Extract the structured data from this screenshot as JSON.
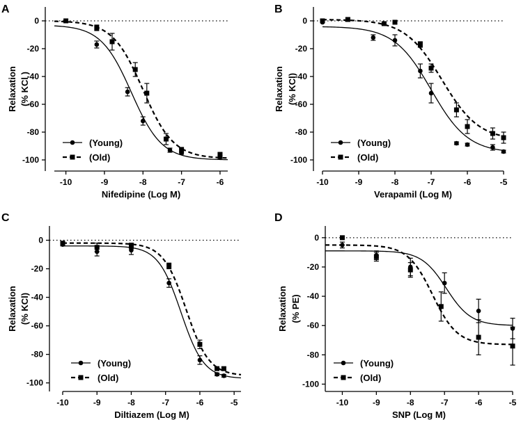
{
  "figure": {
    "panel_count": 4
  },
  "chart_data": [
    {
      "panel": "A",
      "type": "scatter",
      "xlabel": "Nifedipine (Log M)",
      "ylabel": "Relaxation",
      "ylabel_unit": "(% KCl )",
      "xlim": [
        -10.3,
        -5.8
      ],
      "ylim": [
        -108,
        10
      ],
      "xticks": [
        -10,
        -9,
        -8,
        -7,
        -6
      ],
      "yticks": [
        0,
        -20,
        -40,
        -60,
        -80,
        -100
      ],
      "zero_line": true,
      "legend_position": "bottom-left",
      "series": [
        {
          "name": "(Young)",
          "marker": "circle",
          "line": "solid",
          "points": [
            {
              "x": -10,
              "y": 0,
              "err": 0
            },
            {
              "x": -9.2,
              "y": -17,
              "err": 2.5
            },
            {
              "x": -8.4,
              "y": -51,
              "err": 3
            },
            {
              "x": -8,
              "y": -72,
              "err": 3
            },
            {
              "x": -7.3,
              "y": -93,
              "err": 1.5
            },
            {
              "x": -7,
              "y": -95,
              "err": 1
            },
            {
              "x": -6,
              "y": -98,
              "err": 1
            }
          ],
          "curve": {
            "bottom": -100,
            "top": -3,
            "logEC50": -8.3,
            "hill": 1.1
          }
        },
        {
          "name": "(Old)",
          "marker": "square",
          "line": "dashed",
          "points": [
            {
              "x": -10,
              "y": 0,
              "err": 0
            },
            {
              "x": -9.2,
              "y": -5,
              "err": 2
            },
            {
              "x": -8.8,
              "y": -15,
              "err": 6
            },
            {
              "x": -8.2,
              "y": -35,
              "err": 5
            },
            {
              "x": -7.9,
              "y": -52,
              "err": 7
            },
            {
              "x": -7.4,
              "y": -85,
              "err": 4
            },
            {
              "x": -7,
              "y": -93,
              "err": 2
            },
            {
              "x": -6,
              "y": -96,
              "err": 1
            }
          ],
          "curve": {
            "bottom": -99,
            "top": 0,
            "logEC50": -8.0,
            "hill": 1.1
          }
        }
      ]
    },
    {
      "panel": "B",
      "type": "scatter",
      "xlabel": "Verapamil (Log M)",
      "ylabel": "Relaxation",
      "ylabel_unit": "(% KCl)",
      "xlim": [
        -10,
        -5
      ],
      "ylim": [
        -108,
        10
      ],
      "xticks": [
        -10,
        -9,
        -8,
        -7,
        -6,
        -5
      ],
      "yticks": [
        0,
        -20,
        -40,
        -60,
        -80,
        -100
      ],
      "zero_line": true,
      "legend_position": "bottom-left",
      "series": [
        {
          "name": "(Young)",
          "marker": "circle",
          "line": "solid",
          "points": [
            {
              "x": -10,
              "y": -1,
              "err": 0
            },
            {
              "x": -8.6,
              "y": -12,
              "err": 2
            },
            {
              "x": -8,
              "y": -14,
              "err": 4
            },
            {
              "x": -7.3,
              "y": -36,
              "err": 5
            },
            {
              "x": -7,
              "y": -52,
              "err": 7
            },
            {
              "x": -6.3,
              "y": -88,
              "err": 1
            },
            {
              "x": -6,
              "y": -89,
              "err": 1
            },
            {
              "x": -5.3,
              "y": -91,
              "err": 2
            },
            {
              "x": -5,
              "y": -94,
              "err": 1
            }
          ],
          "curve": {
            "bottom": -95,
            "top": -4,
            "logEC50": -7.0,
            "hill": 0.85
          }
        },
        {
          "name": "(Old)",
          "marker": "square",
          "line": "dashed",
          "points": [
            {
              "x": -10,
              "y": 0,
              "err": 0
            },
            {
              "x": -9.3,
              "y": 1,
              "err": 1
            },
            {
              "x": -8.3,
              "y": -2,
              "err": 1
            },
            {
              "x": -8,
              "y": -1,
              "err": 1
            },
            {
              "x": -7.3,
              "y": -17,
              "err": 2
            },
            {
              "x": -7,
              "y": -34,
              "err": 3
            },
            {
              "x": -6.3,
              "y": -64,
              "err": 5
            },
            {
              "x": -6,
              "y": -76,
              "err": 5
            },
            {
              "x": -5.3,
              "y": -81,
              "err": 4
            },
            {
              "x": -5,
              "y": -84,
              "err": 4
            }
          ],
          "curve": {
            "bottom": -86,
            "top": 1,
            "logEC50": -6.7,
            "hill": 0.85
          }
        }
      ]
    },
    {
      "panel": "C",
      "type": "scatter",
      "xlabel": "Diltiazem (Log M)",
      "ylabel": "Relaxation",
      "ylabel_unit": "(% KCl)",
      "xlim": [
        -10,
        -4.8
      ],
      "ylim": [
        -106,
        10
      ],
      "xticks": [
        -10,
        -9,
        -8,
        -7,
        -6,
        -5
      ],
      "yticks": [
        0,
        -20,
        -40,
        -60,
        -80,
        -100
      ],
      "zero_line": true,
      "legend_position": "bottom-left",
      "series": [
        {
          "name": "(Young)",
          "marker": "circle",
          "line": "solid",
          "points": [
            {
              "x": -10,
              "y": -3,
              "err": 1
            },
            {
              "x": -9,
              "y": -8,
              "err": 3
            },
            {
              "x": -8,
              "y": -7,
              "err": 3
            },
            {
              "x": -6.9,
              "y": -30,
              "err": 3
            },
            {
              "x": -6,
              "y": -84,
              "err": 3
            },
            {
              "x": -5.5,
              "y": -94,
              "err": 1
            },
            {
              "x": -5.3,
              "y": -95,
              "err": 1
            }
          ],
          "curve": {
            "bottom": -97,
            "top": -4,
            "logEC50": -6.55,
            "hill": 1.3
          }
        },
        {
          "name": "(Old)",
          "marker": "square",
          "line": "dashed",
          "points": [
            {
              "x": -10,
              "y": -2,
              "err": 1
            },
            {
              "x": -9,
              "y": -5,
              "err": 3
            },
            {
              "x": -8,
              "y": -4,
              "err": 2
            },
            {
              "x": -6.9,
              "y": -18,
              "err": 2
            },
            {
              "x": -6,
              "y": -73,
              "err": 3
            },
            {
              "x": -5.5,
              "y": -90,
              "err": 1
            },
            {
              "x": -5.3,
              "y": -90,
              "err": 1
            }
          ],
          "curve": {
            "bottom": -95,
            "top": -2,
            "logEC50": -6.4,
            "hill": 1.3
          }
        }
      ]
    },
    {
      "panel": "D",
      "type": "scatter",
      "xlabel": "SNP (Log M)",
      "ylabel": "Relaxation",
      "ylabel_unit": "(% PE)",
      "xlim": [
        -10.5,
        -5
      ],
      "ylim": [
        -105,
        8
      ],
      "xticks": [
        -10,
        -9,
        -8,
        -7,
        -6,
        -5
      ],
      "yticks": [
        0,
        -20,
        -40,
        -60,
        -80,
        -100
      ],
      "zero_line": true,
      "legend_position": "bottom-left",
      "series": [
        {
          "name": "(Young)",
          "marker": "circle",
          "line": "solid",
          "points": [
            {
              "x": -10,
              "y": -5,
              "err": 2
            },
            {
              "x": -9,
              "y": -12,
              "err": 3
            },
            {
              "x": -8,
              "y": -20,
              "err": 6
            },
            {
              "x": -7,
              "y": -31,
              "err": 7
            },
            {
              "x": -6,
              "y": -50,
              "err": 8
            },
            {
              "x": -5,
              "y": -62,
              "err": 7
            }
          ],
          "curve": {
            "bottom": -60,
            "top": -9,
            "logEC50": -6.95,
            "hill": 1.2
          }
        },
        {
          "name": "(Old)",
          "marker": "square",
          "line": "dashed",
          "points": [
            {
              "x": -10,
              "y": 0,
              "err": 0
            },
            {
              "x": -9,
              "y": -13,
              "err": 3
            },
            {
              "x": -8,
              "y": -22,
              "err": 5
            },
            {
              "x": -7.1,
              "y": -47,
              "err": 10
            },
            {
              "x": -6,
              "y": -68,
              "err": 12
            },
            {
              "x": -5,
              "y": -74,
              "err": 13
            }
          ],
          "curve": {
            "bottom": -73,
            "top": -5,
            "logEC50": -7.35,
            "hill": 1.2
          }
        }
      ]
    }
  ]
}
